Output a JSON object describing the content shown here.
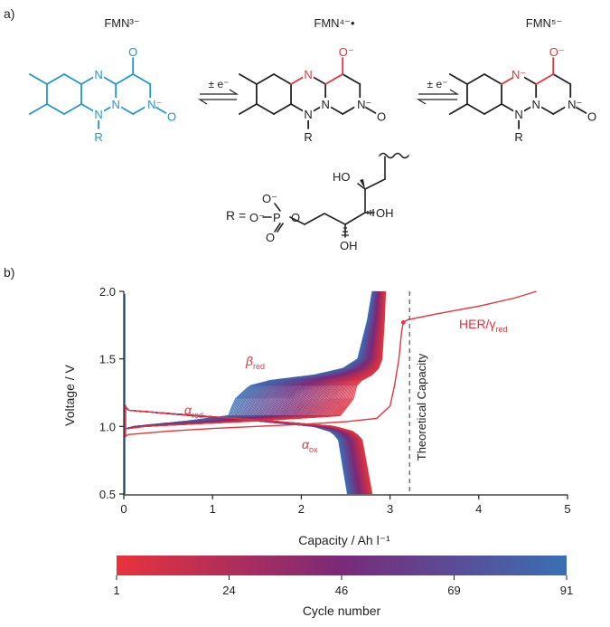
{
  "panel_a": {
    "label": "a)",
    "species": [
      {
        "label": "FMN³⁻",
        "color": "#1e96d2"
      },
      {
        "label": "FMN⁴⁻•",
        "color": "#222222"
      },
      {
        "label": "FMN⁵⁻",
        "color": "#222222"
      }
    ],
    "arrow_labels": [
      "± e⁻",
      "± e⁻"
    ],
    "r_group": {
      "label": "R =",
      "atoms": {
        "ho_top": "HO",
        "oh_right": "OH",
        "oh_bottom": "OH",
        "o_ester": "O",
        "p": "P",
        "o_minus_top": "O⁻",
        "o_minus_bottom": "O⁻",
        "o_double": "O"
      }
    },
    "atom_labels": {
      "n": "N",
      "o": "O",
      "r": "R",
      "n_minus": "N⁻",
      "o_minus": "O⁻"
    },
    "colors": {
      "oxidized": "#1e96d2",
      "reduced_highlight": "#e8323c",
      "bond": "#222222"
    }
  },
  "panel_b": {
    "label": "b)",
    "annotations": {
      "alpha_red": "α",
      "alpha_red_sub": "red",
      "beta_red": "β",
      "beta_red_sub": "red",
      "alpha_ox": "α",
      "alpha_ox_sub": "ox",
      "her": "HER/γ",
      "her_sub": "red",
      "theoretical": "Theoretical Capacity"
    },
    "colorbar": {
      "label": "Cycle number",
      "ticks": [
        "1",
        "24",
        "46",
        "69",
        "91"
      ],
      "start_color": "#e8323c",
      "mid_color": "#7a2a78",
      "end_color": "#3a6fb4"
    }
  },
  "chart_data": {
    "type": "line",
    "title": "",
    "xlabel": "Capacity / Ah l⁻¹",
    "ylabel": "Voltage / V",
    "xlim": [
      0,
      5
    ],
    "ylim": [
      0.5,
      2.0
    ],
    "xticks": [
      0,
      1,
      2,
      3,
      4,
      5
    ],
    "yticks": [
      0.5,
      1.0,
      1.5,
      2.0
    ],
    "xtick_labels": [
      "0",
      "1",
      "2",
      "3",
      "4",
      "5"
    ],
    "ytick_labels": [
      "0.5",
      "1.0",
      "1.5",
      "2.0"
    ],
    "grid": false,
    "theoretical_capacity": 3.22,
    "cycles": 91,
    "first_cycle_charge": {
      "x": [
        0,
        0.05,
        0.5,
        1.0,
        1.5,
        2.0,
        2.5,
        2.85,
        3.0,
        3.05,
        3.1,
        3.13,
        3.15,
        3.2,
        3.5,
        4.0,
        4.4,
        4.65
      ],
      "y": [
        0.92,
        0.94,
        0.965,
        0.985,
        1.0,
        1.015,
        1.035,
        1.06,
        1.15,
        1.3,
        1.5,
        1.7,
        1.77,
        1.79,
        1.83,
        1.89,
        1.95,
        2.0
      ]
    },
    "charge_curve_shape": {
      "x_fraction": [
        0,
        0.05,
        0.3,
        0.5,
        0.53,
        0.58,
        0.65,
        0.8,
        0.9,
        0.95,
        0.985,
        1.0
      ],
      "y": [
        0.98,
        1.0,
        1.04,
        1.08,
        1.2,
        1.3,
        1.34,
        1.38,
        1.43,
        1.5,
        1.8,
        2.0
      ]
    },
    "discharge_curve_shape": {
      "x_fraction": [
        0,
        0.02,
        0.3,
        0.6,
        0.85,
        0.93,
        0.96,
        0.98,
        1.0
      ],
      "y": [
        1.16,
        1.12,
        1.08,
        1.04,
        1.0,
        0.96,
        0.9,
        0.7,
        0.5
      ]
    },
    "charge_end_capacity": {
      "first": 2.95,
      "last": 2.8
    },
    "charge_step_capacity": {
      "first": 2.6,
      "last": 1.25
    },
    "discharge_end_capacity": {
      "first": 2.8,
      "last": 2.52
    }
  }
}
